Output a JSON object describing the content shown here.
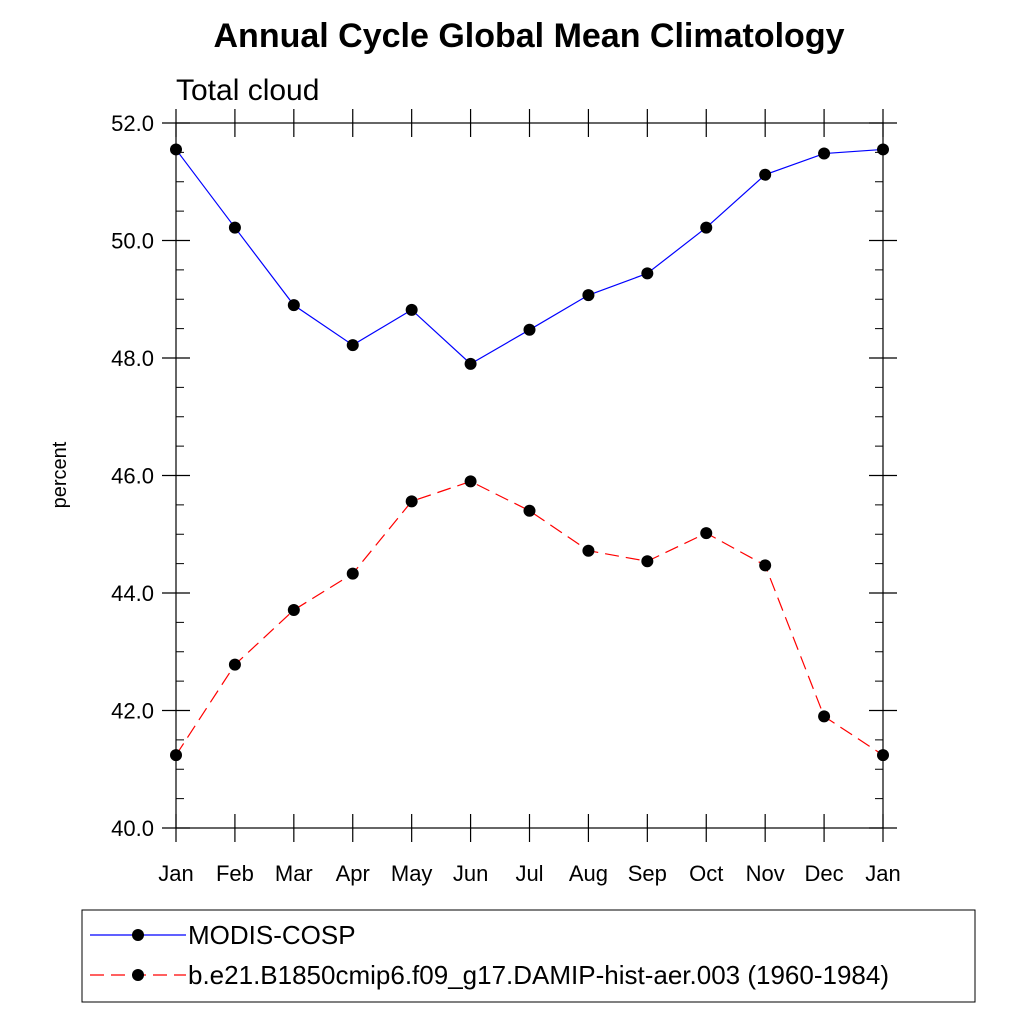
{
  "chart_data": {
    "type": "line",
    "title": "Annual Cycle Global Mean Climatology",
    "subtitle": "Total cloud",
    "xlabel": "",
    "ylabel": "percent",
    "categories": [
      "Jan",
      "Feb",
      "Mar",
      "Apr",
      "May",
      "Jun",
      "Jul",
      "Aug",
      "Sep",
      "Oct",
      "Nov",
      "Dec",
      "Jan"
    ],
    "ylim": [
      40.0,
      52.0
    ],
    "yticks": [
      "40.0",
      "42.0",
      "44.0",
      "46.0",
      "48.0",
      "50.0",
      "52.0"
    ],
    "grid": false,
    "legend_position": "bottom",
    "series": [
      {
        "name": "MODIS-COSP",
        "color": "#0000ff",
        "line_style": "solid",
        "marker": "filled-circle",
        "values": [
          51.55,
          50.22,
          48.9,
          48.22,
          48.82,
          47.9,
          48.48,
          49.07,
          49.44,
          50.22,
          51.12,
          51.48,
          51.55
        ]
      },
      {
        "name": "b.e21.B1850cmip6.f09_g17.DAMIP-hist-aer.003 (1960-1984)",
        "color": "#ff0000",
        "line_style": "dashed",
        "marker": "filled-circle",
        "values": [
          41.24,
          42.78,
          43.71,
          44.33,
          45.56,
          45.9,
          45.4,
          44.72,
          44.54,
          45.02,
          44.47,
          41.9,
          41.24
        ]
      }
    ]
  }
}
